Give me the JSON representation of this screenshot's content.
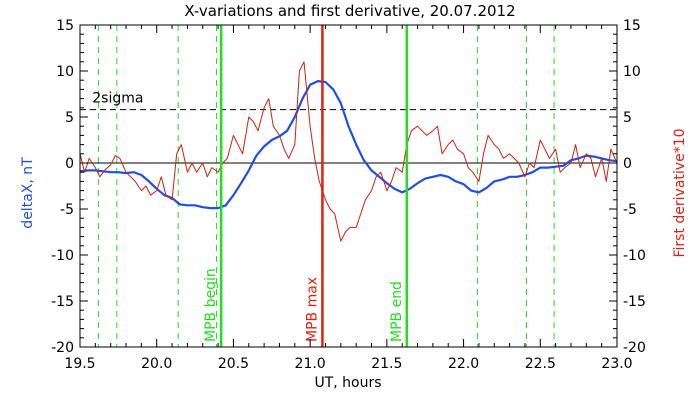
{
  "chart_data": {
    "type": "line",
    "title": "X-variations and first derivative, 20.07.2012",
    "xlabel": "UT, hours",
    "ylabel_left": "deltaX, nT",
    "ylabel_right": "First derivative*10",
    "xlim": [
      19.5,
      23.0
    ],
    "ylim": [
      -20,
      15
    ],
    "x_ticks": [
      "19.5",
      "20.0",
      "20.5",
      "21.0",
      "21.5",
      "22.0",
      "22.5",
      "23.0"
    ],
    "x_tick_values": [
      19.5,
      20.0,
      20.5,
      21.0,
      21.5,
      22.0,
      22.5,
      23.0
    ],
    "y_ticks": [
      "-20",
      "-15",
      "-10",
      "-5",
      "0",
      "5",
      "10",
      "15"
    ],
    "y_tick_values": [
      -20,
      -15,
      -10,
      -5,
      0,
      5,
      10,
      15
    ],
    "grid": false,
    "colors": {
      "deltaX": "#1f4fe0",
      "derivative": "#d02010",
      "mpb": "#22dd22",
      "max": "#e02010",
      "threshold": "#000000",
      "zero": "#000000",
      "dashed_vertical": "#22dd22",
      "left_label": "#1f4fe0",
      "right_label": "#e02010"
    },
    "threshold": {
      "label": "2sigma",
      "y": 5.8
    },
    "zero_line": 0,
    "dashed_verticals": [
      19.62,
      19.74,
      20.14,
      20.39,
      22.09,
      22.41,
      22.59
    ],
    "markers": [
      {
        "label": "MPB begin",
        "x": 20.42,
        "color": "#22dd22"
      },
      {
        "label": "MPB max",
        "x": 21.08,
        "color": "#e02010"
      },
      {
        "label": "MPB end",
        "x": 21.63,
        "color": "#22dd22"
      }
    ],
    "series": [
      {
        "color": "#1f4fe0",
        "x": [
          19.5,
          19.55,
          19.6,
          19.65,
          19.7,
          19.75,
          19.8,
          19.85,
          19.9,
          19.95,
          20.0,
          20.05,
          20.1,
          20.15,
          20.2,
          20.25,
          20.3,
          20.35,
          20.4,
          20.45,
          20.5,
          20.55,
          20.6,
          20.65,
          20.7,
          20.75,
          20.8,
          20.85,
          20.9,
          20.95,
          21.0,
          21.05,
          21.1,
          21.15,
          21.2,
          21.25,
          21.3,
          21.35,
          21.4,
          21.45,
          21.5,
          21.55,
          21.6,
          21.65,
          21.7,
          21.75,
          21.8,
          21.85,
          21.9,
          21.95,
          22.0,
          22.05,
          22.1,
          22.15,
          22.2,
          22.25,
          22.3,
          22.35,
          22.4,
          22.45,
          22.5,
          22.55,
          22.6,
          22.65,
          22.7,
          22.75,
          22.8,
          22.85,
          22.9,
          22.95,
          23.0
        ],
        "values": [
          -0.9,
          -0.8,
          -0.8,
          -0.9,
          -1.0,
          -1.0,
          -1.1,
          -1.0,
          -1.3,
          -2.0,
          -2.8,
          -3.5,
          -3.8,
          -4.5,
          -4.6,
          -4.6,
          -4.8,
          -4.9,
          -4.9,
          -4.6,
          -3.5,
          -2.2,
          -0.8,
          0.8,
          1.8,
          2.5,
          2.9,
          3.5,
          5.0,
          7.0,
          8.5,
          8.9,
          8.8,
          8.0,
          6.5,
          4.0,
          2.0,
          0.3,
          -0.8,
          -1.5,
          -2.2,
          -2.8,
          -3.2,
          -2.8,
          -2.2,
          -1.7,
          -1.5,
          -1.3,
          -1.5,
          -2.0,
          -2.3,
          -3.0,
          -3.2,
          -2.7,
          -2.0,
          -1.8,
          -1.5,
          -1.5,
          -1.3,
          -1.0,
          -0.5,
          -0.5,
          -0.4,
          -0.3,
          0.3,
          0.5,
          0.8,
          0.7,
          0.5,
          0.3,
          0.2
        ]
      },
      {
        "color": "#d02010",
        "x": [
          19.5,
          19.53,
          19.56,
          19.6,
          19.63,
          19.66,
          19.7,
          19.73,
          19.76,
          19.8,
          19.83,
          19.86,
          19.9,
          19.93,
          19.96,
          20.0,
          20.03,
          20.06,
          20.1,
          20.13,
          20.16,
          20.2,
          20.23,
          20.26,
          20.3,
          20.33,
          20.36,
          20.4,
          20.43,
          20.46,
          20.5,
          20.53,
          20.56,
          20.6,
          20.63,
          20.66,
          20.7,
          20.73,
          20.76,
          20.8,
          20.83,
          20.86,
          20.9,
          20.93,
          20.96,
          21.0,
          21.03,
          21.06,
          21.1,
          21.13,
          21.16,
          21.2,
          21.23,
          21.26,
          21.3,
          21.33,
          21.36,
          21.4,
          21.43,
          21.46,
          21.5,
          21.53,
          21.56,
          21.6,
          21.63,
          21.66,
          21.7,
          21.73,
          21.76,
          21.8,
          21.83,
          21.86,
          21.9,
          21.93,
          21.96,
          22.0,
          22.03,
          22.06,
          22.1,
          22.13,
          22.16,
          22.2,
          22.23,
          22.26,
          22.3,
          22.33,
          22.36,
          22.4,
          22.43,
          22.46,
          22.5,
          22.53,
          22.56,
          22.6,
          22.63,
          22.66,
          22.7,
          22.73,
          22.76,
          22.8,
          22.83,
          22.86,
          22.9,
          22.93,
          22.96,
          23.0
        ],
        "values": [
          1.0,
          -1.0,
          0.5,
          -0.5,
          -1.5,
          -0.8,
          -0.2,
          0.8,
          0.5,
          -1.0,
          -1.5,
          -2.0,
          -3.0,
          -2.5,
          -3.5,
          -3.0,
          -1.5,
          -3.5,
          -4.0,
          1.0,
          2.0,
          -1.0,
          0.0,
          -1.0,
          0.0,
          -1.5,
          -0.5,
          -1.0,
          0.0,
          0.5,
          3.0,
          2.0,
          1.0,
          5.0,
          4.5,
          3.5,
          6.0,
          7.0,
          4.0,
          3.0,
          1.5,
          0.5,
          2.0,
          10.0,
          11.0,
          4.0,
          0.5,
          -2.0,
          -4.0,
          -5.0,
          -5.5,
          -8.5,
          -7.5,
          -7.0,
          -7.0,
          -5.5,
          -4.0,
          -3.0,
          -1.5,
          -1.0,
          -3.0,
          -2.0,
          -0.5,
          -1.0,
          2.0,
          3.5,
          4.0,
          3.5,
          3.0,
          3.5,
          4.0,
          1.0,
          2.0,
          2.5,
          1.5,
          1.0,
          -0.5,
          -1.0,
          -2.0,
          1.0,
          3.0,
          2.0,
          1.5,
          0.5,
          1.0,
          0.5,
          0.0,
          -1.5,
          0.0,
          -0.5,
          2.5,
          1.5,
          0.5,
          1.5,
          -1.0,
          -0.5,
          0.0,
          2.0,
          -0.5,
          1.0,
          0.5,
          -1.5,
          0.5,
          -2.0,
          1.5,
          0.0
        ]
      }
    ]
  }
}
